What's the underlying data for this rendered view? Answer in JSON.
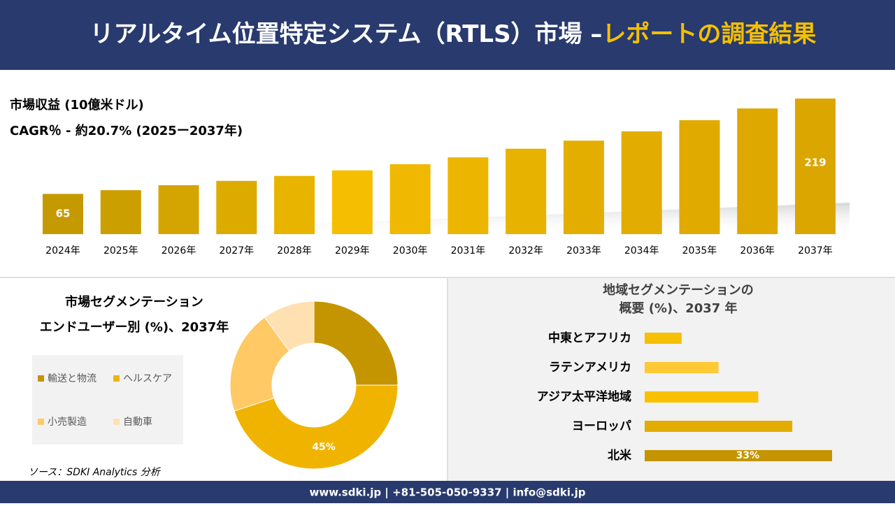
{
  "header": {
    "title_main": "リアルタイム位置特定システム（RTLS）市場 –",
    "title_accent": "レポートの調査結果"
  },
  "chart_data": [
    {
      "type": "bar",
      "title": "市場収益 (10億米ドル)",
      "subtitle": "CAGR％ - 約20.7% (2025ー2037年)",
      "categories": [
        "2024年",
        "2025年",
        "2026年",
        "2027年",
        "2028年",
        "2029年",
        "2030年",
        "2031年",
        "2032年",
        "2033年",
        "2034年",
        "2035年",
        "2036年",
        "2037年"
      ],
      "values": [
        65,
        71,
        79,
        86,
        94,
        103,
        113,
        124,
        138,
        151,
        166,
        184,
        203,
        219
      ],
      "value_labels": [
        "65",
        null,
        null,
        null,
        null,
        null,
        null,
        null,
        null,
        null,
        null,
        null,
        null,
        "219"
      ],
      "colors": [
        "#c49a00",
        "#cc9f00",
        "#d4a500",
        "#dcab00",
        "#e8b400",
        "#f5be00",
        "#f0b800",
        "#ecb500",
        "#e8b200",
        "#e4ae00",
        "#e2ac00",
        "#e0aa00",
        "#dea800",
        "#dca600"
      ]
    },
    {
      "type": "donut",
      "title": [
        "市場セグメンテーション",
        "エンドユーザー別 (%)、2037年"
      ],
      "categories": [
        "輸送と物流",
        "ヘルスケア",
        "小売製造",
        "自動車"
      ],
      "values": [
        25,
        45,
        20,
        10
      ],
      "value_labels": [
        null,
        "45%",
        null,
        null
      ],
      "colors": [
        "#c49500",
        "#f0b400",
        "#ffc966",
        "#ffe0b0"
      ]
    },
    {
      "type": "hbar",
      "title": [
        "地域セグメンテーションの",
        "概要 (%)、2037 年"
      ],
      "categories": [
        "中東とアフリカ",
        "ラテンアメリカ",
        "アジア太平洋地域",
        "ヨーロッパ",
        "北米"
      ],
      "values": [
        6.5,
        13,
        20,
        26,
        33
      ],
      "value_labels": [
        null,
        null,
        null,
        null,
        "33%"
      ],
      "colors": [
        "#f5c000",
        "#ffc933",
        "#f8c000",
        "#e2ad00",
        "#c49500"
      ]
    }
  ],
  "source": "ソース：SDKI Analytics 分析",
  "footer": "www.sdki.jp | +81-505-050-9337 | info@sdki.jp"
}
